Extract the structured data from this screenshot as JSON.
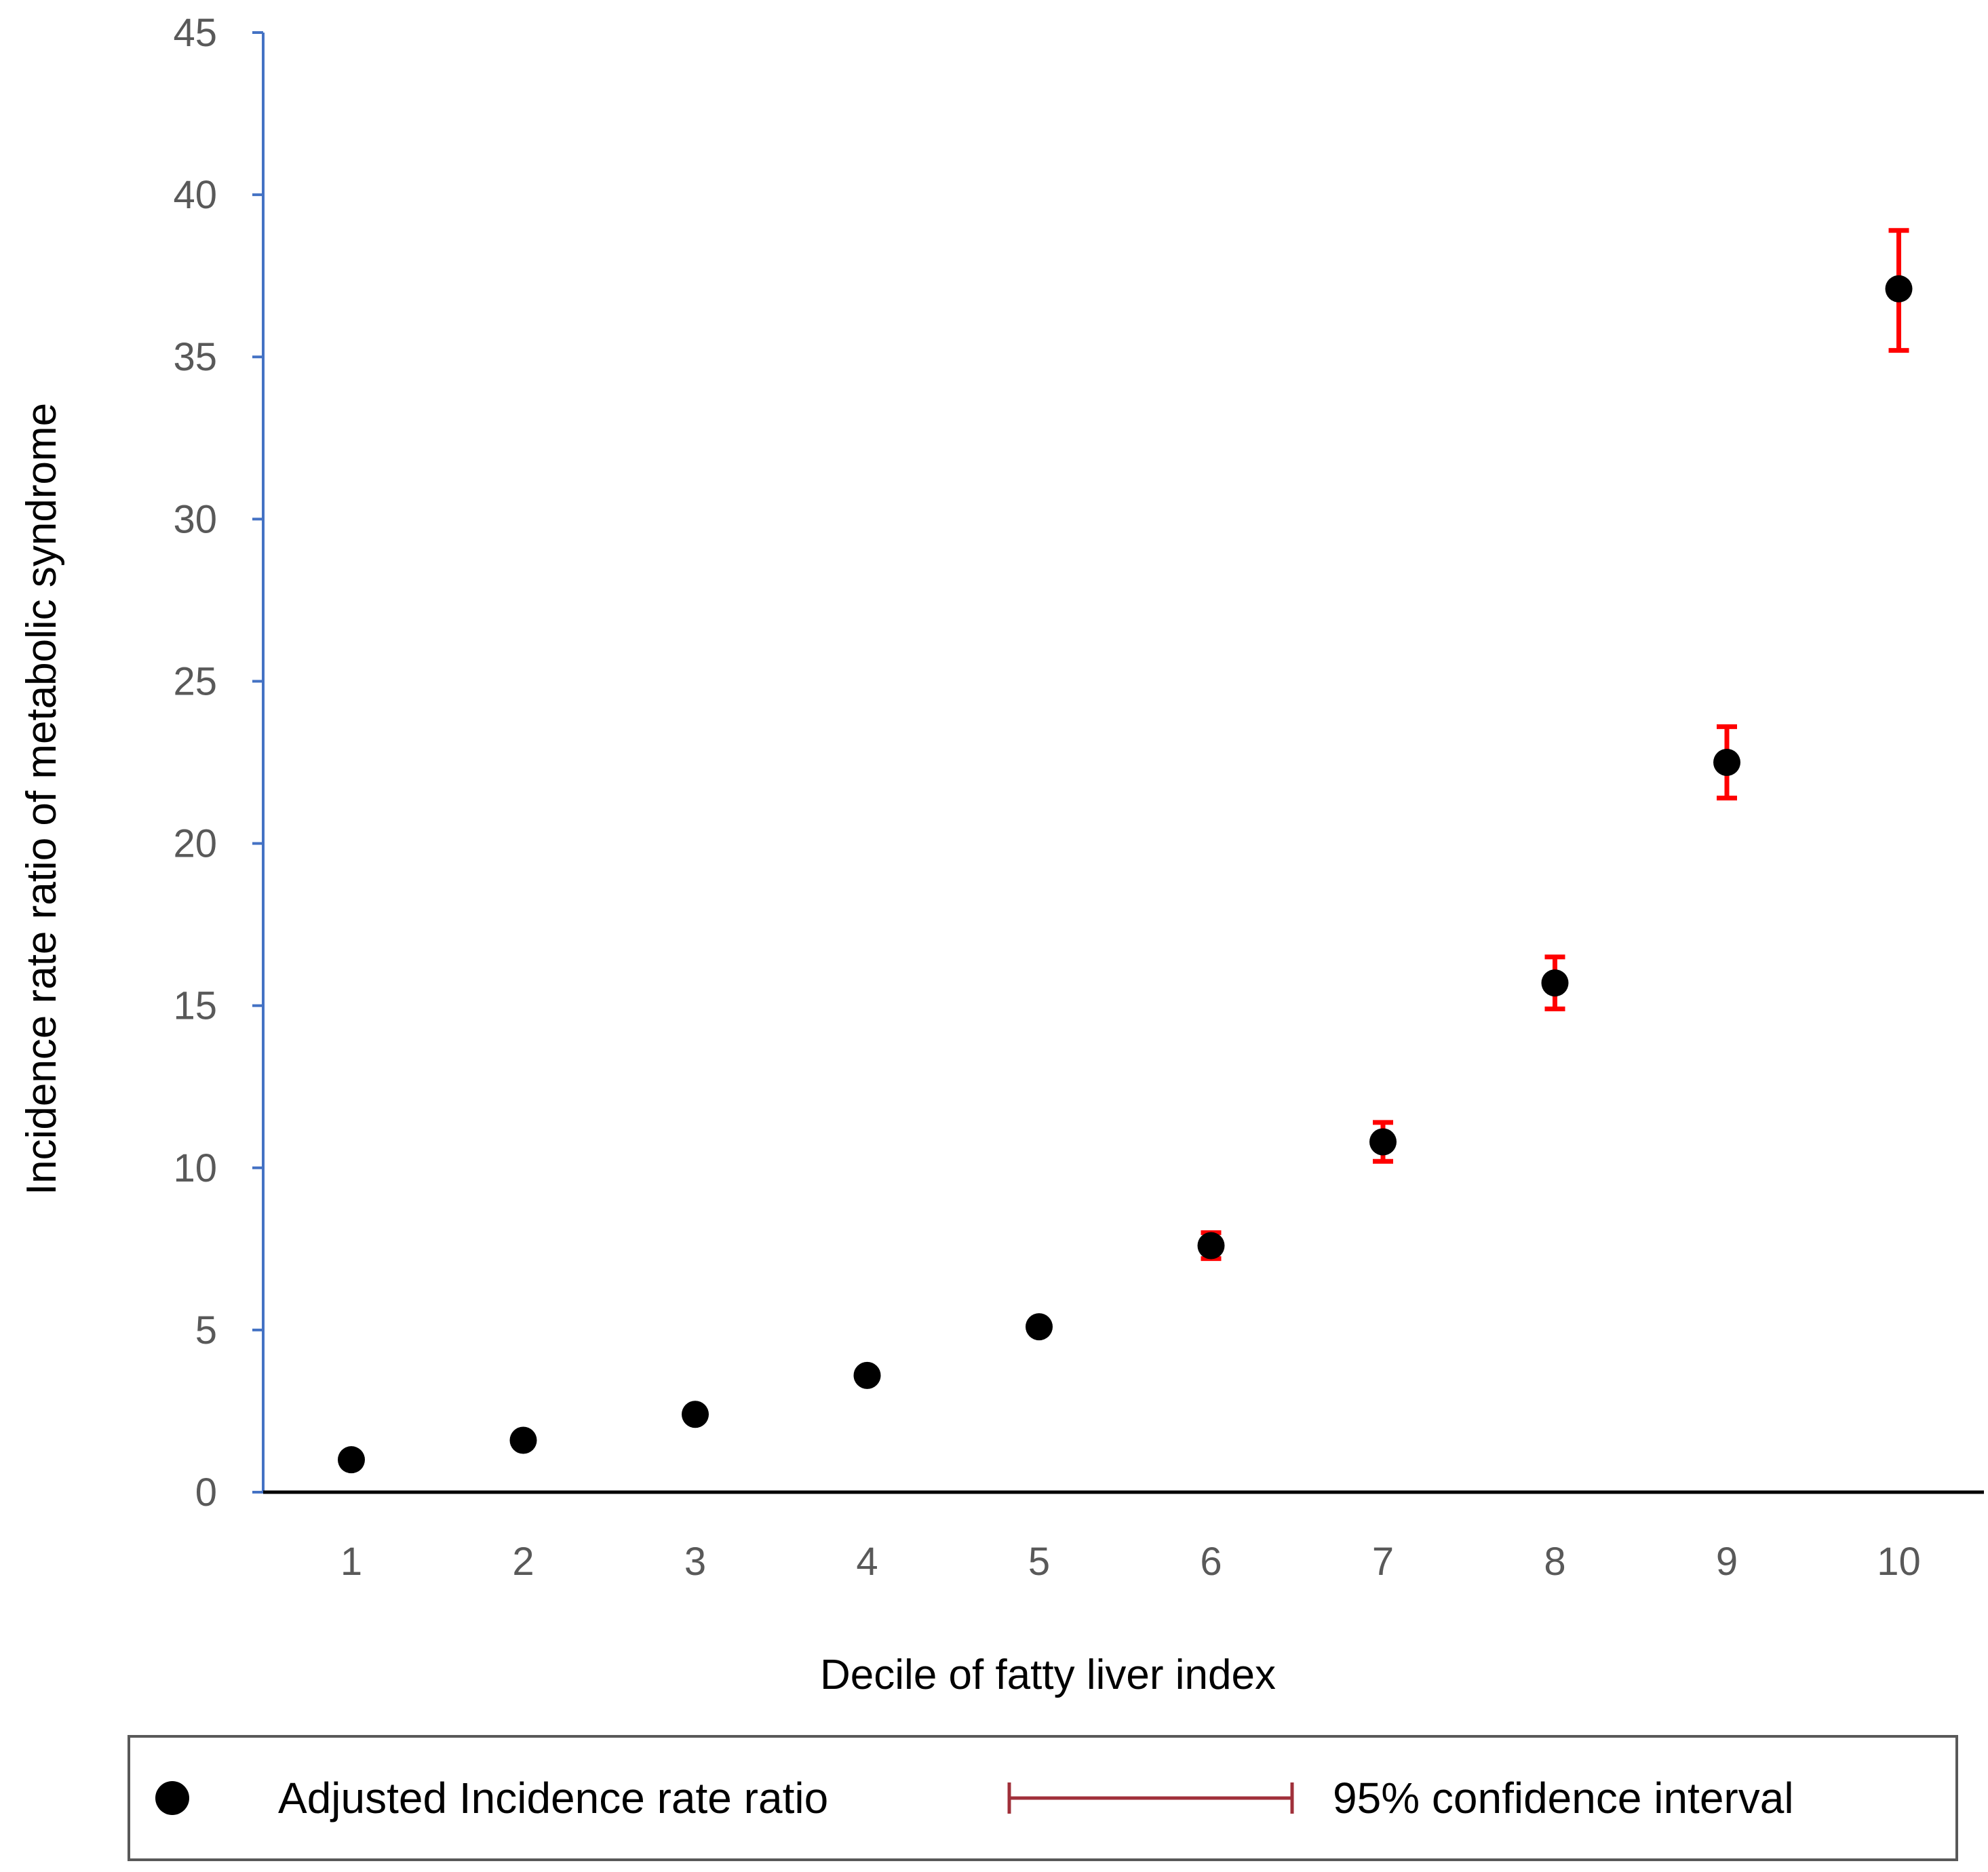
{
  "chart_data": {
    "type": "scatter",
    "title": "",
    "xlabel": "Decile of fatty liver index",
    "ylabel": "Incidence rate ratio of metabolic syndrome",
    "x": [
      1,
      2,
      3,
      4,
      5,
      6,
      7,
      8,
      9,
      10
    ],
    "series": [
      {
        "name": "Adjusted Incidence rate ratio",
        "values": [
          1.0,
          1.6,
          2.4,
          3.6,
          5.1,
          7.6,
          10.8,
          15.7,
          22.5,
          37.1
        ],
        "ci_low": [
          1.0,
          1.6,
          2.4,
          3.6,
          4.9,
          7.2,
          10.2,
          14.9,
          21.4,
          35.2
        ],
        "ci_high": [
          1.0,
          1.6,
          2.4,
          3.6,
          5.3,
          8.0,
          11.4,
          16.5,
          23.6,
          38.9
        ]
      }
    ],
    "ylim": [
      0,
      45
    ],
    "yticks": [
      0,
      5,
      10,
      15,
      20,
      25,
      30,
      35,
      40,
      45
    ],
    "xticks": [
      "1",
      "2",
      "3",
      "4",
      "5",
      "6",
      "7",
      "8",
      "9",
      "10"
    ],
    "legend": {
      "position": "bottom",
      "point_label": "Adjusted  Incidence rate ratio",
      "ci_label": "95% confidence interval"
    },
    "colors": {
      "point": "#000000",
      "error_bar": "#ff0000",
      "y_axis": "#4472c4",
      "x_axis": "#000000",
      "legend_ci": "#a0303a",
      "tick_text": "#595959"
    }
  }
}
